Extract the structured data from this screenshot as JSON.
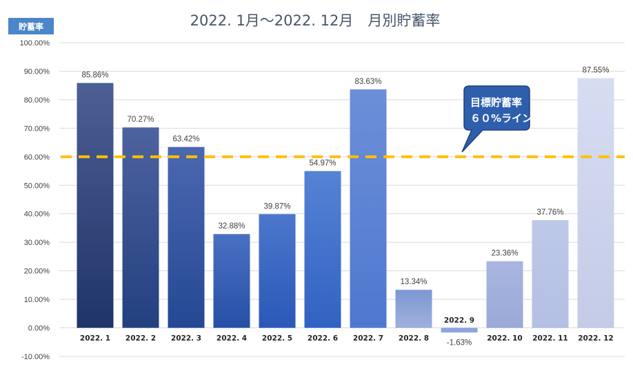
{
  "chart_data": {
    "type": "bar",
    "title": "2022. 1月～2022. 12月　月別貯蓄率",
    "ylabel": "貯蓄率",
    "xlabel": "",
    "ylim": [
      -10,
      100
    ],
    "ytick_step": 10,
    "ytick_labels": [
      "-10.00%",
      "0.00%",
      "10.00%",
      "20.00%",
      "30.00%",
      "40.00%",
      "50.00%",
      "60.00%",
      "70.00%",
      "80.00%",
      "90.00%",
      "100.00%"
    ],
    "categories": [
      "2022. 1",
      "2022. 2",
      "2022. 3",
      "2022. 4",
      "2022. 5",
      "2022. 6",
      "2022. 7",
      "2022. 8",
      "2022. 9",
      "2022. 10",
      "2022. 11",
      "2022. 12"
    ],
    "values": [
      85.86,
      70.27,
      63.42,
      32.88,
      39.87,
      54.97,
      83.63,
      13.34,
      -1.63,
      23.36,
      37.76,
      87.55
    ],
    "value_labels": [
      "85.86%",
      "70.27%",
      "63.42%",
      "32.88%",
      "39.87%",
      "54.97%",
      "83.63%",
      "13.34%",
      "-1.63%",
      "23.36%",
      "37.76%",
      "87.55%"
    ],
    "grid": true,
    "target_line": {
      "value": 60,
      "color": "#ffc000"
    },
    "callout": {
      "line1": "目標貯蓄率",
      "line2": "６０%ライン"
    },
    "bar_colors": [
      [
        "#4d5f94",
        "#1f3468"
      ],
      [
        "#4d63a0",
        "#23407e"
      ],
      [
        "#4b68b0",
        "#244893"
      ],
      [
        "#4a70c2",
        "#2650a6"
      ],
      [
        "#4c77cc",
        "#2a58b8"
      ],
      [
        "#5583d5",
        "#3062c2"
      ],
      [
        "#6c8fd8",
        "#4e78cf"
      ],
      [
        "#7d97d4",
        "#9fb0dd"
      ],
      [
        "#8da5dd",
        "#8da5dd"
      ],
      [
        "#a8b6e0",
        "#9aa9d7"
      ],
      [
        "#bec9e8",
        "#b3c0e4"
      ],
      [
        "#d7ddf1",
        "#c3cbe7"
      ]
    ],
    "colors": {
      "callout_fill": "#2e5fad",
      "callout_stroke": "#1e3f78",
      "badge": "#4a86c8",
      "title": "#44546a"
    }
  }
}
